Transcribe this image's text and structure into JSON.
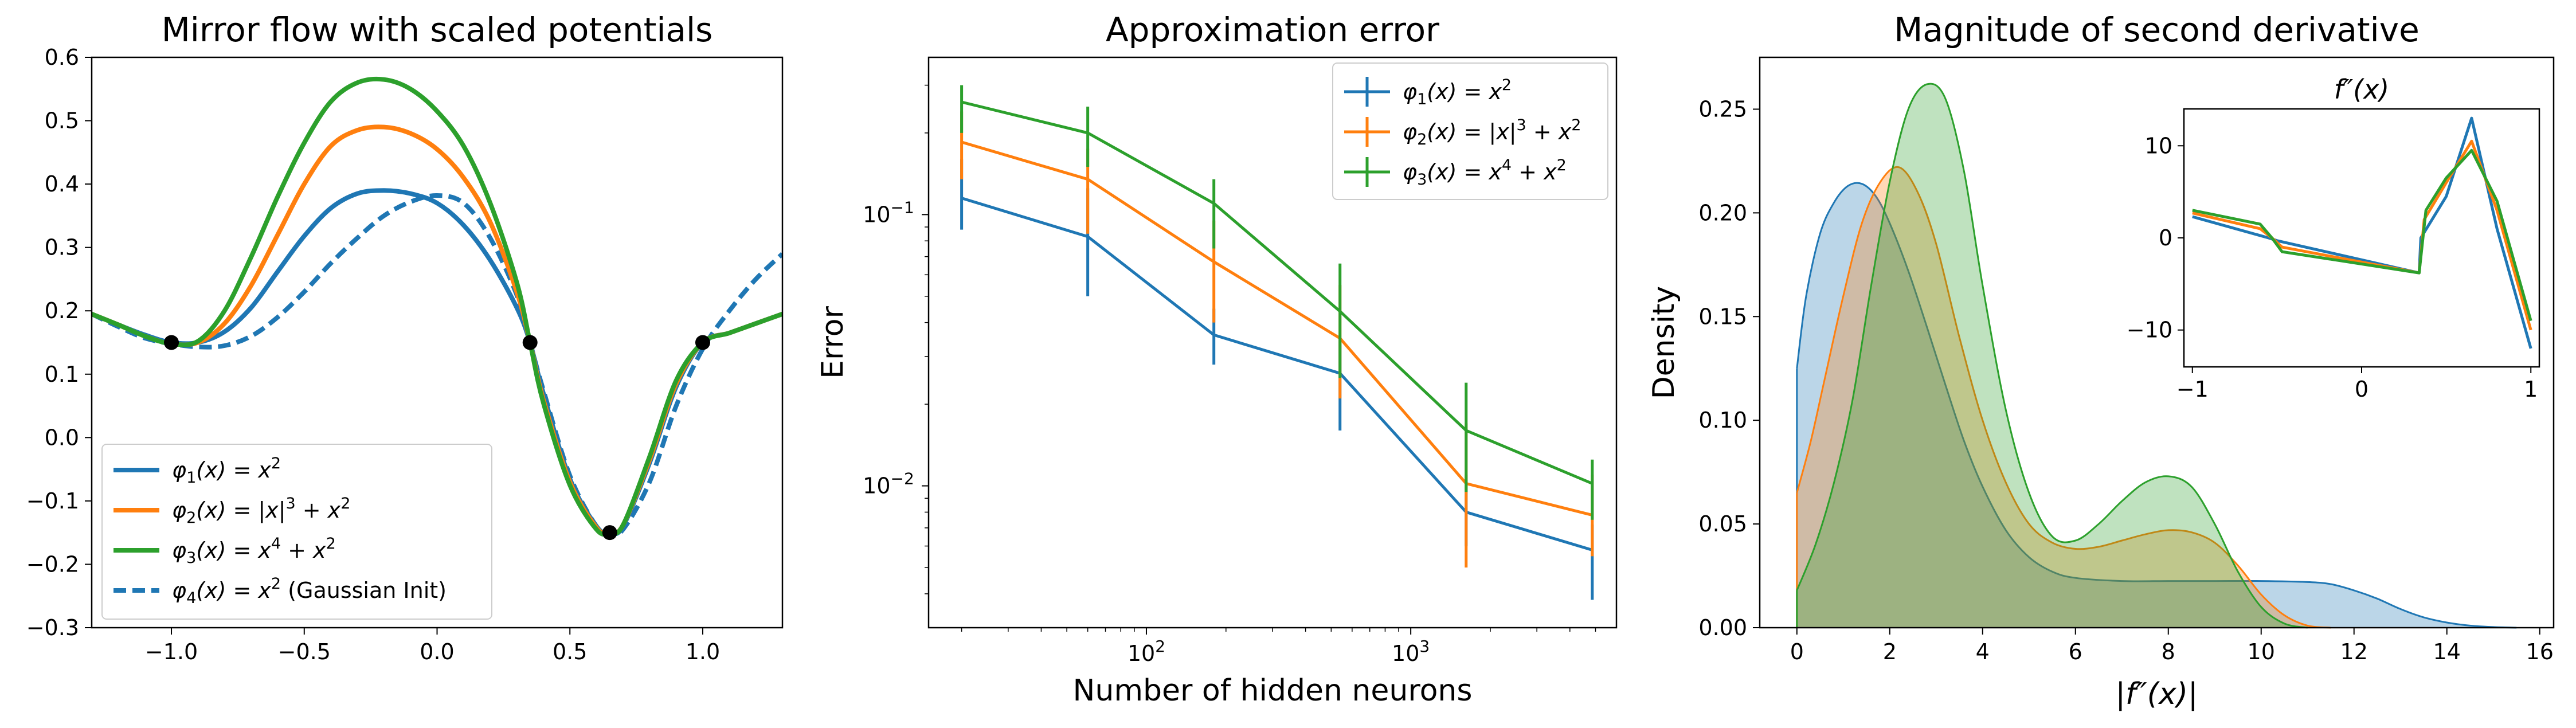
{
  "colors": {
    "phi1": "#1f77b4",
    "phi2": "#ff7f0e",
    "phi3": "#2ca02c",
    "markers": "#000000"
  },
  "chart_data": [
    {
      "type": "line",
      "title": "Mirror flow with scaled potentials",
      "xlabel": "",
      "ylabel": "",
      "xlim": [
        -1.3,
        1.3
      ],
      "ylim": [
        -0.3,
        0.6
      ],
      "xticks": [
        "−1.0",
        "−0.5",
        "0.0",
        "0.5",
        "1.0"
      ],
      "yticks": [
        "−0.3",
        "−0.2",
        "−0.1",
        "0.0",
        "0.1",
        "0.2",
        "0.3",
        "0.4",
        "0.5",
        "0.6"
      ],
      "legend_position": "lower-left",
      "data_points": {
        "x": [
          -1.0,
          0.35,
          0.65,
          1.0
        ],
        "y": [
          0.15,
          0.15,
          -0.15,
          0.15
        ]
      },
      "series": [
        {
          "name": "φ1(x) = x²",
          "style": "solid",
          "x": [
            -1.3,
            -1.2,
            -1.1,
            -1.0,
            -0.9,
            -0.8,
            -0.7,
            -0.6,
            -0.5,
            -0.4,
            -0.3,
            -0.2,
            -0.1,
            0.0,
            0.1,
            0.2,
            0.3,
            0.35,
            0.4,
            0.5,
            0.6,
            0.65,
            0.7,
            0.8,
            0.9,
            1.0,
            1.1,
            1.2,
            1.3
          ],
          "y": [
            0.195,
            0.178,
            0.162,
            0.15,
            0.15,
            0.167,
            0.205,
            0.262,
            0.318,
            0.362,
            0.385,
            0.39,
            0.385,
            0.37,
            0.335,
            0.28,
            0.205,
            0.15,
            0.07,
            -0.065,
            -0.14,
            -0.15,
            -0.14,
            -0.04,
            0.08,
            0.15,
            0.165,
            0.18,
            0.195
          ]
        },
        {
          "name": "φ2(x) = |x|³ + x²",
          "style": "solid",
          "x": [
            -1.3,
            -1.2,
            -1.1,
            -1.0,
            -0.9,
            -0.8,
            -0.7,
            -0.6,
            -0.5,
            -0.4,
            -0.3,
            -0.2,
            -0.1,
            0.0,
            0.1,
            0.2,
            0.3,
            0.35,
            0.4,
            0.5,
            0.6,
            0.65,
            0.7,
            0.8,
            0.9,
            1.0,
            1.1,
            1.2,
            1.3
          ],
          "y": [
            0.195,
            0.178,
            0.16,
            0.148,
            0.15,
            0.18,
            0.24,
            0.32,
            0.4,
            0.46,
            0.485,
            0.49,
            0.48,
            0.455,
            0.41,
            0.34,
            0.23,
            0.15,
            0.06,
            -0.07,
            -0.142,
            -0.15,
            -0.138,
            -0.035,
            0.085,
            0.15,
            0.165,
            0.18,
            0.195
          ]
        },
        {
          "name": "φ3(x) = x⁴ + x²",
          "style": "solid",
          "x": [
            -1.3,
            -1.2,
            -1.1,
            -1.0,
            -0.9,
            -0.8,
            -0.7,
            -0.6,
            -0.5,
            -0.4,
            -0.3,
            -0.2,
            -0.1,
            0.0,
            0.1,
            0.2,
            0.3,
            0.35,
            0.4,
            0.5,
            0.6,
            0.65,
            0.7,
            0.8,
            0.9,
            1.0,
            1.1,
            1.2,
            1.3
          ],
          "y": [
            0.195,
            0.178,
            0.16,
            0.148,
            0.152,
            0.2,
            0.285,
            0.38,
            0.465,
            0.53,
            0.56,
            0.565,
            0.55,
            0.515,
            0.46,
            0.37,
            0.245,
            0.15,
            0.055,
            -0.075,
            -0.145,
            -0.15,
            -0.138,
            -0.03,
            0.09,
            0.15,
            0.165,
            0.18,
            0.195
          ]
        },
        {
          "name": "φ4(x) = x² (Gaussian Init)",
          "style": "dashed",
          "x": [
            -1.3,
            -1.2,
            -1.1,
            -1.0,
            -0.9,
            -0.8,
            -0.7,
            -0.6,
            -0.5,
            -0.4,
            -0.3,
            -0.2,
            -0.1,
            0.0,
            0.1,
            0.2,
            0.3,
            0.35,
            0.4,
            0.5,
            0.6,
            0.65,
            0.7,
            0.8,
            0.9,
            1.0,
            1.1,
            1.2,
            1.3
          ],
          "y": [
            0.195,
            0.175,
            0.157,
            0.148,
            0.143,
            0.145,
            0.16,
            0.19,
            0.23,
            0.275,
            0.315,
            0.35,
            0.372,
            0.382,
            0.37,
            0.315,
            0.225,
            0.15,
            0.075,
            -0.06,
            -0.14,
            -0.15,
            -0.145,
            -0.07,
            0.05,
            0.14,
            0.2,
            0.25,
            0.29
          ]
        }
      ]
    },
    {
      "type": "line",
      "title": "Approximation error",
      "xlabel": "Number of hidden neurons",
      "ylabel": "Error",
      "xscale": "log",
      "yscale": "log",
      "xlim": [
        15,
        6000
      ],
      "ylim": [
        0.003,
        0.38
      ],
      "xticks": [
        {
          "label": "10",
          "sup": "2"
        },
        {
          "label": "10",
          "sup": "3"
        }
      ],
      "yticks": [
        {
          "label": "10",
          "sup": "−2"
        },
        {
          "label": "10",
          "sup": "−1"
        }
      ],
      "legend_position": "top-right",
      "x": [
        20,
        60,
        180,
        540,
        1620,
        4860
      ],
      "series": [
        {
          "name": "φ1(x) = x²",
          "values": [
            0.115,
            0.083,
            0.036,
            0.026,
            0.008,
            0.0058
          ],
          "err_low": [
            0.088,
            0.05,
            0.028,
            0.016,
            0.006,
            0.0038
          ],
          "err_high": [
            0.16,
            0.125,
            0.045,
            0.035,
            0.011,
            0.0072
          ]
        },
        {
          "name": "φ2(x) = |x|³ + x²",
          "values": [
            0.185,
            0.135,
            0.067,
            0.035,
            0.0102,
            0.0078
          ],
          "err_low": [
            0.135,
            0.085,
            0.04,
            0.021,
            0.005,
            0.0055
          ],
          "err_high": [
            0.24,
            0.175,
            0.095,
            0.055,
            0.017,
            0.011
          ]
        },
        {
          "name": "φ3(x) = x⁴ + x²",
          "values": [
            0.26,
            0.2,
            0.11,
            0.044,
            0.016,
            0.0102
          ],
          "err_low": [
            0.2,
            0.15,
            0.075,
            0.025,
            0.0095,
            0.0075
          ],
          "err_high": [
            0.3,
            0.25,
            0.135,
            0.066,
            0.024,
            0.0125
          ]
        }
      ]
    },
    {
      "type": "area",
      "title": "Magnitude of second derivative",
      "xlabel": "|f″(x)|",
      "ylabel": "Density",
      "xlim": [
        -0.8,
        16.3
      ],
      "ylim": [
        0.0,
        0.275
      ],
      "xticks": [
        "0",
        "2",
        "4",
        "6",
        "8",
        "10",
        "12",
        "14",
        "16"
      ],
      "yticks": [
        "0.00",
        "0.05",
        "0.10",
        "0.15",
        "0.20",
        "0.25"
      ],
      "series": [
        {
          "name": "φ1(x) = x²",
          "x": [
            0,
            0.2,
            0.5,
            0.8,
            1.1,
            1.4,
            1.7,
            2.0,
            2.4,
            2.8,
            3.2,
            3.6,
            4.0,
            4.5,
            5.0,
            5.5,
            6.0,
            7.0,
            8.0,
            9.0,
            10.0,
            11.0,
            11.5,
            12.0,
            12.5,
            13.0,
            13.5,
            14.0,
            14.5,
            15.0,
            15.5
          ],
          "y": [
            0.125,
            0.16,
            0.19,
            0.205,
            0.213,
            0.214,
            0.208,
            0.195,
            0.172,
            0.145,
            0.117,
            0.09,
            0.068,
            0.047,
            0.034,
            0.027,
            0.024,
            0.0225,
            0.0225,
            0.0225,
            0.0225,
            0.022,
            0.021,
            0.018,
            0.014,
            0.009,
            0.005,
            0.0025,
            0.001,
            0.0003,
            0.0
          ]
        },
        {
          "name": "φ2(x) = |x|³ + x²",
          "x": [
            0,
            0.3,
            0.6,
            1.0,
            1.4,
            1.8,
            2.2,
            2.6,
            3.0,
            3.5,
            4.0,
            4.5,
            5.0,
            5.5,
            6.0,
            6.5,
            7.0,
            7.5,
            8.0,
            8.5,
            9.0,
            9.5,
            10.0,
            10.5,
            11.0,
            11.5
          ],
          "y": [
            0.065,
            0.09,
            0.12,
            0.16,
            0.195,
            0.215,
            0.222,
            0.21,
            0.185,
            0.14,
            0.1,
            0.07,
            0.05,
            0.041,
            0.038,
            0.039,
            0.042,
            0.045,
            0.047,
            0.046,
            0.041,
            0.03,
            0.016,
            0.006,
            0.001,
            0.0
          ]
        },
        {
          "name": "φ3(x) = x⁴ + x²",
          "x": [
            0,
            0.4,
            0.8,
            1.2,
            1.6,
            2.0,
            2.4,
            2.8,
            3.2,
            3.6,
            4.0,
            4.5,
            5.0,
            5.5,
            6.0,
            6.5,
            7.0,
            7.5,
            8.0,
            8.5,
            9.0,
            9.5,
            10.0,
            10.5,
            11.0
          ],
          "y": [
            0.018,
            0.04,
            0.07,
            0.11,
            0.165,
            0.215,
            0.25,
            0.262,
            0.255,
            0.22,
            0.165,
            0.105,
            0.065,
            0.044,
            0.042,
            0.05,
            0.061,
            0.07,
            0.073,
            0.068,
            0.05,
            0.027,
            0.01,
            0.002,
            0.0
          ]
        }
      ],
      "inset": {
        "title": "f″(x)",
        "xlim": [
          -1.05,
          1.05
        ],
        "ylim": [
          -14,
          14
        ],
        "xticks": [
          "−1",
          "0",
          "1"
        ],
        "yticks": [
          "−10",
          "0",
          "10"
        ],
        "series": [
          {
            "name": "φ1(x) = x²",
            "x": [
              -1.0,
              -0.55,
              -0.5,
              0.34,
              0.35,
              0.5,
              0.65,
              0.8,
              1.0
            ],
            "y": [
              2.3,
              0.0,
              -0.3,
              -3.8,
              0.0,
              4.5,
              13.0,
              1.0,
              -12.0
            ]
          },
          {
            "name": "φ2(x) = |x|³ + x²",
            "x": [
              -1.0,
              -0.6,
              -0.53,
              -0.47,
              0.34,
              0.37,
              0.5,
              0.65,
              0.8,
              1.0
            ],
            "y": [
              2.7,
              1.0,
              0.0,
              -1.0,
              -3.8,
              2.0,
              6.0,
              10.5,
              3.0,
              -10.0
            ]
          },
          {
            "name": "φ3(x) = x⁴ + x²",
            "x": [
              -1.0,
              -0.6,
              -0.53,
              -0.47,
              0.34,
              0.38,
              0.5,
              0.65,
              0.8,
              1.0
            ],
            "y": [
              3.0,
              1.5,
              0.0,
              -1.5,
              -3.8,
              3.0,
              6.5,
              9.5,
              4.0,
              -9.0
            ]
          }
        ]
      }
    }
  ]
}
